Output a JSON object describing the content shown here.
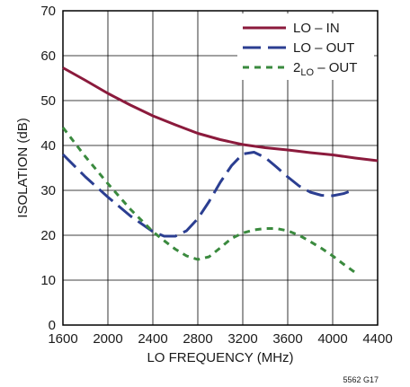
{
  "chart_data": {
    "type": "line",
    "title": "",
    "xlabel": "LO FREQUENCY (MHz)",
    "ylabel": "ISOLATION (dB)",
    "xlim": [
      1600,
      4400
    ],
    "ylim": [
      0,
      70
    ],
    "xticks": [
      1600,
      2000,
      2400,
      2800,
      3200,
      3600,
      4000,
      4400
    ],
    "yticks": [
      0,
      10,
      20,
      30,
      40,
      50,
      60,
      70
    ],
    "grid": true,
    "legend_position": "top-right",
    "series": [
      {
        "name_main": "LO – IN",
        "name_sub": "",
        "name_tail": "",
        "color": "#8b1a3c",
        "dash": "solid",
        "points": [
          [
            1600,
            57.3
          ],
          [
            1800,
            54.5
          ],
          [
            2000,
            51.6
          ],
          [
            2200,
            49.0
          ],
          [
            2400,
            46.6
          ],
          [
            2600,
            44.6
          ],
          [
            2800,
            42.7
          ],
          [
            3000,
            41.3
          ],
          [
            3200,
            40.2
          ],
          [
            3400,
            39.5
          ],
          [
            3600,
            39.0
          ],
          [
            3800,
            38.4
          ],
          [
            4000,
            37.9
          ],
          [
            4200,
            37.2
          ],
          [
            4400,
            36.6
          ]
        ]
      },
      {
        "name_main": "LO – OUT",
        "name_sub": "",
        "name_tail": "",
        "color": "#2b3e91",
        "dash": "long",
        "points": [
          [
            1600,
            38.0
          ],
          [
            1800,
            33.0
          ],
          [
            2000,
            28.5
          ],
          [
            2200,
            24.3
          ],
          [
            2400,
            20.8
          ],
          [
            2500,
            19.8
          ],
          [
            2600,
            19.8
          ],
          [
            2700,
            21.0
          ],
          [
            2800,
            23.7
          ],
          [
            2900,
            27.5
          ],
          [
            3000,
            31.8
          ],
          [
            3100,
            35.5
          ],
          [
            3200,
            38.1
          ],
          [
            3300,
            38.5
          ],
          [
            3400,
            37.3
          ],
          [
            3500,
            35.2
          ],
          [
            3600,
            33.0
          ],
          [
            3700,
            31.0
          ],
          [
            3800,
            29.6
          ],
          [
            3900,
            28.9
          ],
          [
            4000,
            28.8
          ],
          [
            4100,
            29.3
          ],
          [
            4200,
            30.2
          ]
        ]
      },
      {
        "name_main": "2",
        "name_sub": "LO",
        "name_tail": " – OUT",
        "color": "#3a8a3e",
        "dash": "short",
        "points": [
          [
            1600,
            44.0
          ],
          [
            1800,
            37.5
          ],
          [
            2000,
            31.5
          ],
          [
            2200,
            25.8
          ],
          [
            2400,
            20.8
          ],
          [
            2500,
            18.8
          ],
          [
            2600,
            16.9
          ],
          [
            2700,
            15.4
          ],
          [
            2800,
            14.6
          ],
          [
            2900,
            15.2
          ],
          [
            3000,
            17.2
          ],
          [
            3100,
            19.3
          ],
          [
            3200,
            20.5
          ],
          [
            3300,
            21.2
          ],
          [
            3400,
            21.5
          ],
          [
            3500,
            21.5
          ],
          [
            3600,
            21.0
          ],
          [
            3700,
            20.0
          ],
          [
            3800,
            18.6
          ],
          [
            3900,
            17.1
          ],
          [
            4000,
            15.4
          ],
          [
            4100,
            13.5
          ],
          [
            4200,
            11.7
          ]
        ]
      }
    ]
  },
  "figure_id": "5562 G17"
}
